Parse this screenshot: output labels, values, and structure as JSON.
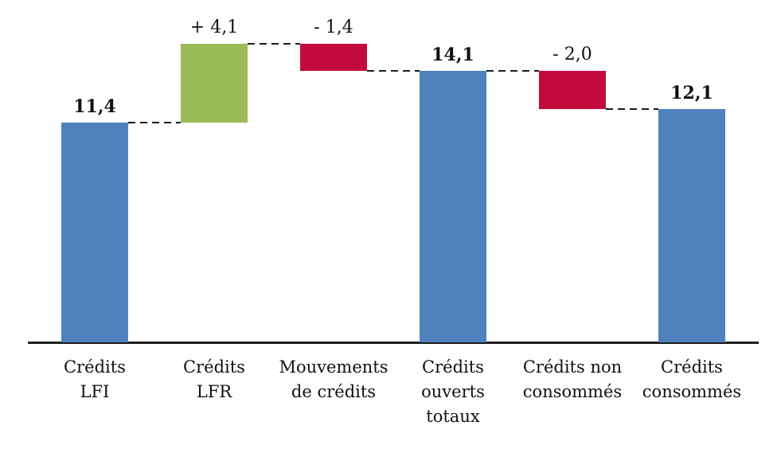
{
  "chart_data": {
    "type": "bar",
    "subtype": "waterfall",
    "title": "",
    "xlabel": "",
    "ylabel": "",
    "ylim": [
      0,
      17.8
    ],
    "grid": false,
    "legend": false,
    "connector_style": "dashed",
    "colors": {
      "total": "#4F81BD",
      "increase": "#9BBB59",
      "decrease": "#C20B3C"
    },
    "categories": [
      "Crédits LFI",
      "Crédits LFR",
      "Mouvements de crédits",
      "Crédits ouverts totaux",
      "Crédits non consommés",
      "Crédits consommés"
    ],
    "bars": [
      {
        "name": "credits-lfi",
        "label_lines": [
          "Crédits",
          "LFI"
        ],
        "role": "total",
        "value": 11.4,
        "value_label": "11,4",
        "start": 0,
        "end": 11.4,
        "bold_label": true
      },
      {
        "name": "credits-lfr",
        "label_lines": [
          "Crédits",
          "LFR"
        ],
        "role": "increase",
        "value": 4.1,
        "value_label": "+ 4,1",
        "start": 11.4,
        "end": 15.5,
        "bold_label": false
      },
      {
        "name": "mouvements-de-credits",
        "label_lines": [
          "Mouvements",
          "de crédits"
        ],
        "role": "decrease",
        "value": -1.4,
        "value_label": "- 1,4",
        "start": 15.5,
        "end": 14.1,
        "bold_label": false
      },
      {
        "name": "credits-ouverts-totaux",
        "label_lines": [
          "Crédits",
          "ouverts",
          "totaux"
        ],
        "role": "total",
        "value": 14.1,
        "value_label": "14,1",
        "start": 0,
        "end": 14.1,
        "bold_label": true
      },
      {
        "name": "credits-non-consommes",
        "label_lines": [
          "Crédits non",
          "consommés"
        ],
        "role": "decrease",
        "value": -2.0,
        "value_label": "- 2,0",
        "start": 14.1,
        "end": 12.1,
        "bold_label": false
      },
      {
        "name": "credits-consommes",
        "label_lines": [
          "Crédits",
          "consommés"
        ],
        "role": "total",
        "value": 12.1,
        "value_label": "12,1",
        "start": 0,
        "end": 12.1,
        "bold_label": true
      }
    ]
  }
}
